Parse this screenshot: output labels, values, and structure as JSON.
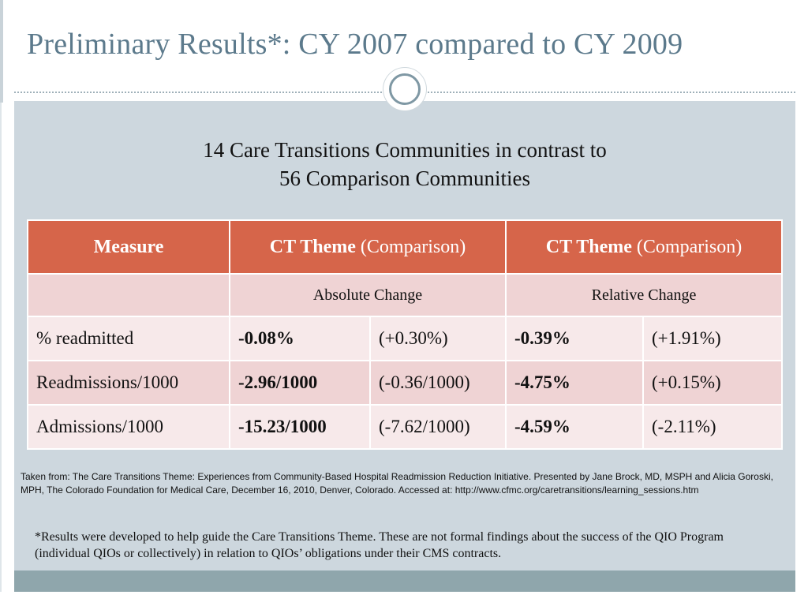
{
  "slide": {
    "title": "Preliminary Results*:  CY 2007 compared to CY 2009",
    "subtitle_line1": "14 Care Transitions Communities in contrast to",
    "subtitle_line2": "56 Comparison Communities"
  },
  "table": {
    "headers": [
      {
        "bold": "Measure",
        "rest": ""
      },
      {
        "bold": "CT Theme",
        "rest": " (Comparison)"
      },
      {
        "bold": "CT Theme",
        "rest": " (Comparison)"
      }
    ],
    "subheaders": [
      "",
      "Absolute Change",
      "Relative Change"
    ],
    "rows": [
      {
        "measure": "% readmitted",
        "abs_ct": "-0.08%",
        "abs_cmp": "(+0.30%)",
        "rel_ct": "-0.39%",
        "rel_cmp": "(+1.91%)"
      },
      {
        "measure": "Readmissions/1000",
        "abs_ct": "-2.96/1000",
        "abs_cmp": "(-0.36/1000)",
        "rel_ct": "-4.75%",
        "rel_cmp": "(+0.15%)"
      },
      {
        "measure": "Admissions/1000",
        "abs_ct": "-15.23/1000",
        "abs_cmp": "(-7.62/1000)",
        "rel_ct": "-4.59%",
        "rel_cmp": "(-2.11%)"
      }
    ]
  },
  "source_text": "Taken from:  The Care Transitions Theme: Experiences from Community-Based Hospital Readmission Reduction Initiative.  Presented by Jane Brock, MD, MSPH and Alicia Goroski, MPH, The Colorado Foundation for Medical Care, December 16, 2010, Denver, Colorado.  Accessed at: http://www.cfmc.org/caretransitions/learning_sessions.htm",
  "disclaimer_text": "*Results were developed to help guide the Care Transitions Theme.  These are not formal findings about the success of the QIO Program (individual QIOs or collectively) in relation to QIOs’ obligations under their CMS contracts.",
  "colors": {
    "title": "#5c7a8c",
    "header_bg": "#d6654a",
    "row_light": "#f7e9ea",
    "row_dark": "#efd3d4",
    "body_bg": "#cdd7de",
    "footer_bar": "#8fa6ac"
  }
}
